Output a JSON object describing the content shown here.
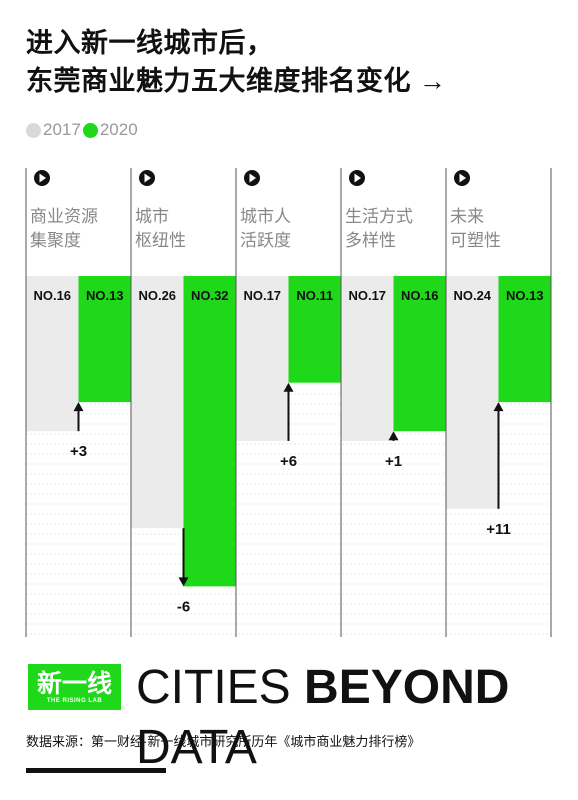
{
  "title_line1": "进入新一线城市后，",
  "title_line2": "东莞商业魅力五大维度排名变化 →",
  "legend": [
    {
      "label": "2017",
      "color": "#d9d9d9"
    },
    {
      "label": "2020",
      "color": "#1fd81a"
    }
  ],
  "colors": {
    "gray_bar": "#ebebeb",
    "green_bar": "#1fd81a",
    "grid": "#d0d0d0"
  },
  "chart_data": {
    "type": "bar",
    "categories": [
      "商业资源\n集聚度",
      "城市\n枢纽性",
      "城市人\n活跃度",
      "生活方式\n多样性",
      "未来\n可塑性"
    ],
    "series": [
      {
        "name": "2017",
        "values": [
          16,
          26,
          17,
          17,
          24
        ],
        "labels": [
          "NO.16",
          "NO.26",
          "NO.17",
          "NO.17",
          "NO.24"
        ]
      },
      {
        "name": "2020",
        "values": [
          13,
          32,
          11,
          16,
          13
        ],
        "labels": [
          "NO.13",
          "NO.32",
          "NO.11",
          "NO.16",
          "NO.13"
        ]
      }
    ],
    "changes": [
      "+3",
      "-6",
      "+6",
      "+1",
      "+11"
    ],
    "ylim": [
      0,
      36
    ]
  },
  "footer": {
    "logo": "新一线",
    "logo_sub": "THE RISING LAB",
    "brand_thin": "CITIES ",
    "brand_bold": "BEYOND",
    "brand_tail": " DATA",
    "source": "数据来源：第一财经·新一线城市研究所历年《城市商业魅力排行榜》"
  }
}
